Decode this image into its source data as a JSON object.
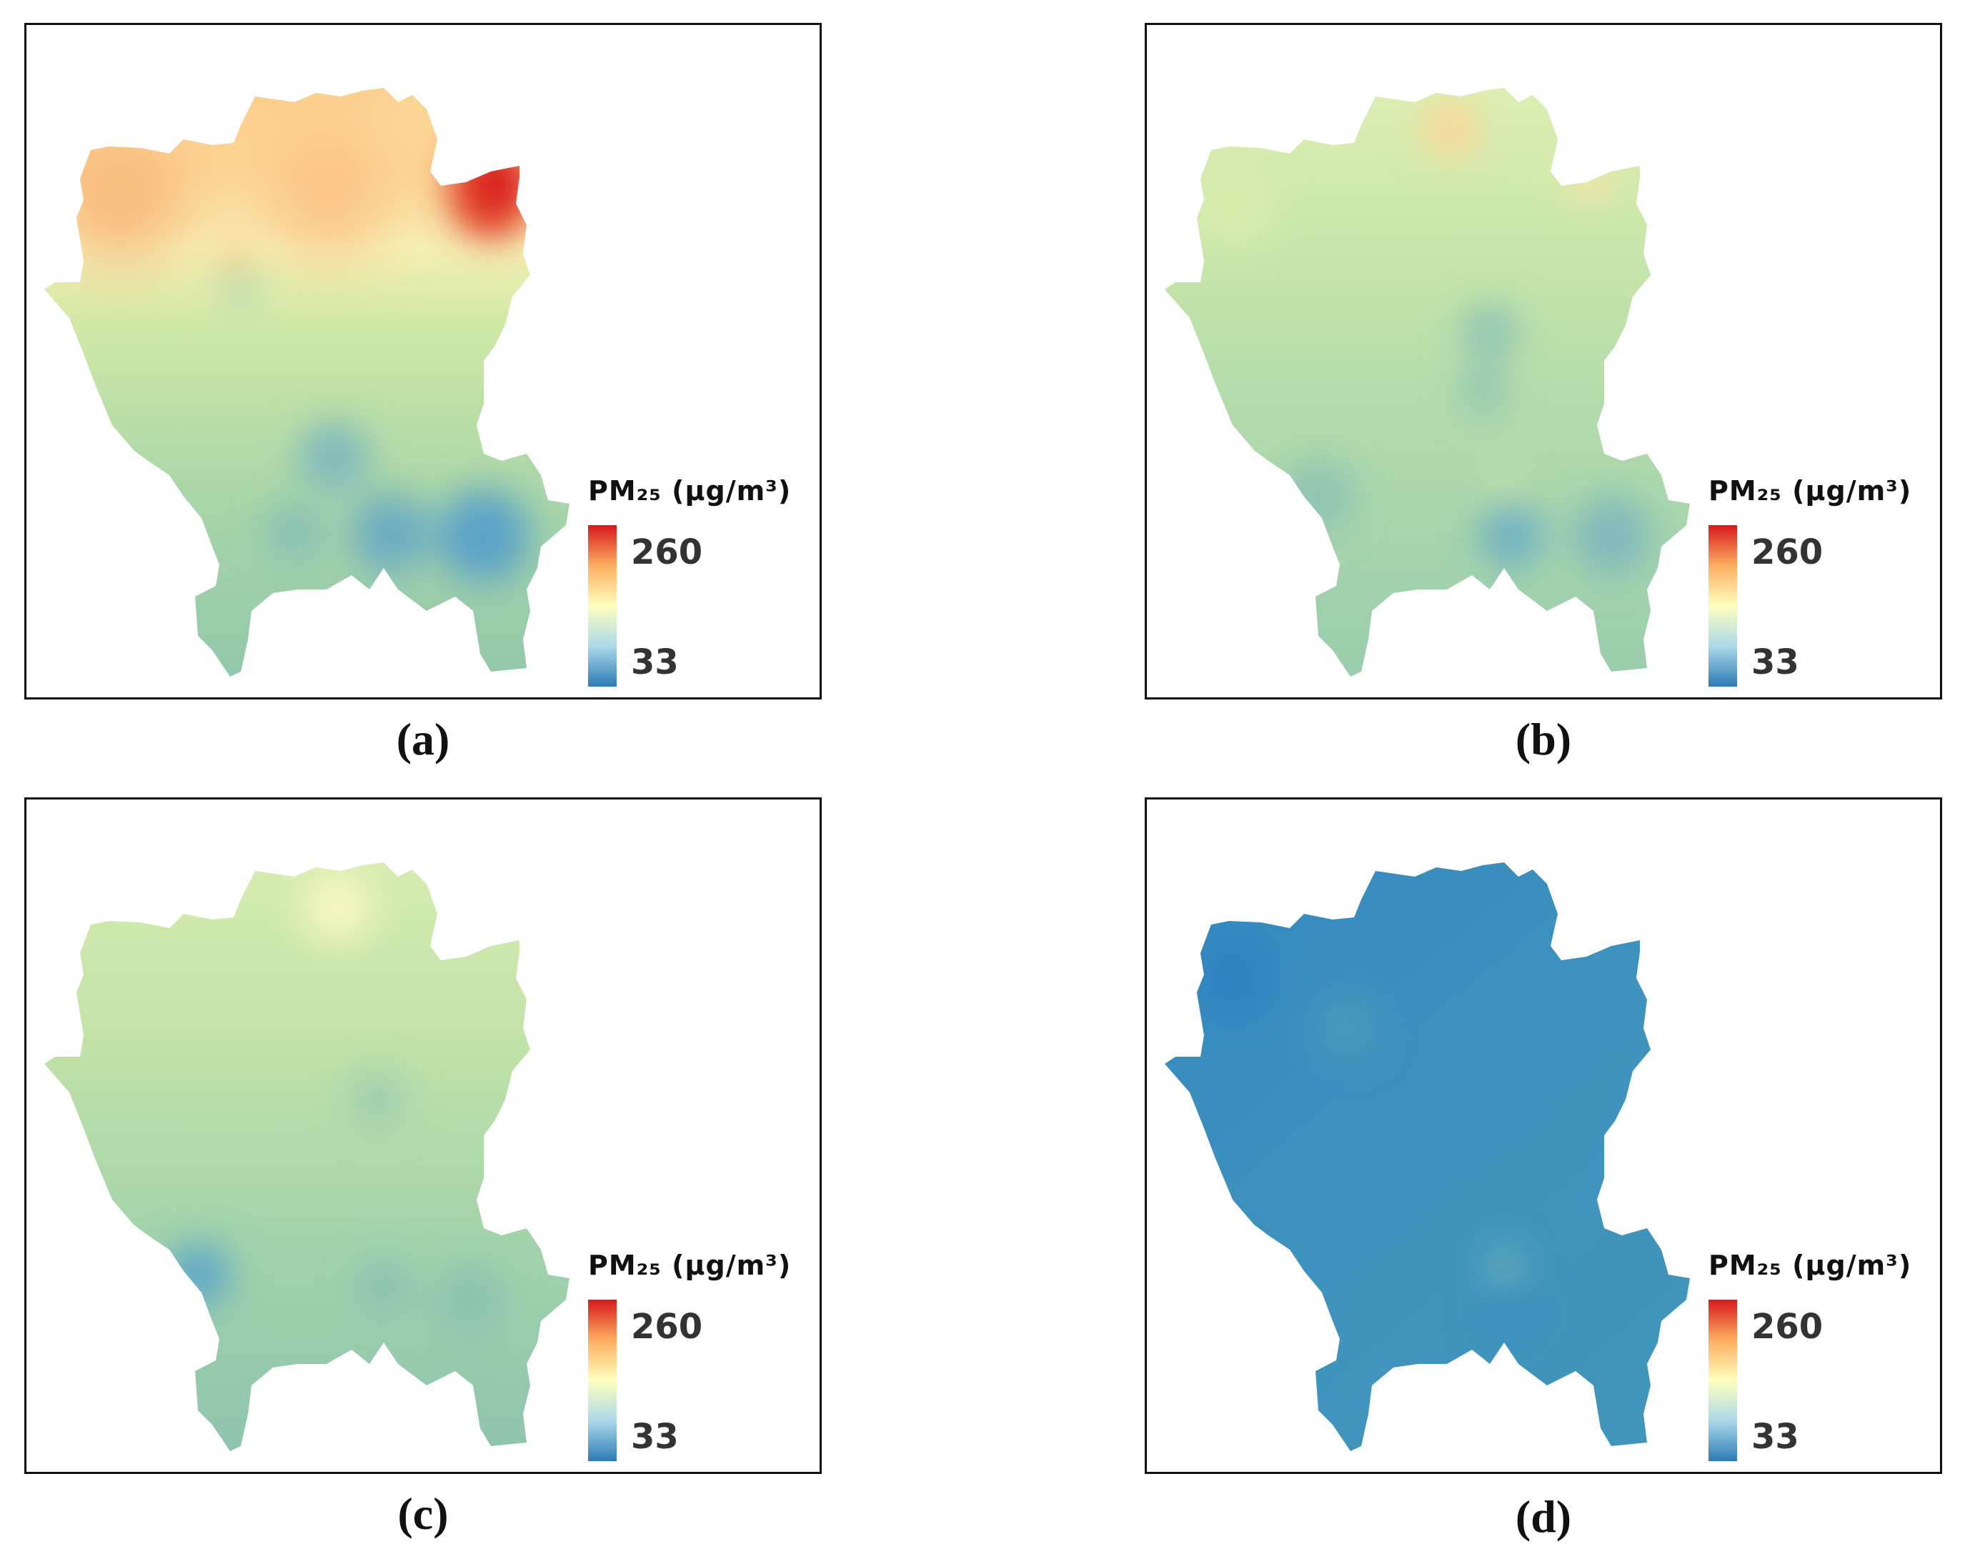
{
  "legend": {
    "title": "PM₂₅ (μg/m³)",
    "max_label": "260",
    "min_label": "33",
    "colormap": [
      "#2c7bb6",
      "#abd9e9",
      "#ffffbf",
      "#fdae61",
      "#d7191c"
    ]
  },
  "panels": [
    {
      "label": "(a)",
      "base_color": "#c6e3a6",
      "gradient": [
        "#fbc98a",
        "#fbe6a2",
        "#c6e3a6",
        "#9fd0a8",
        "#8ac4ac"
      ],
      "hotspots": [
        {
          "color": "#d7191c",
          "description": "northeast lobe"
        },
        {
          "color": "#f7b878",
          "description": "northwest"
        },
        {
          "color": "#5ba3c8",
          "description": "southeast"
        }
      ]
    },
    {
      "label": "(b)",
      "base_color": "#bfe1a8",
      "gradient": [
        "#e9f3b8",
        "#cfe9aa",
        "#b3dbab",
        "#9dcfac",
        "#92c8ad"
      ],
      "hotspots": [
        {
          "color": "#fbd795",
          "description": "north"
        },
        {
          "color": "#6fb1c5",
          "description": "south-central"
        }
      ]
    },
    {
      "label": "(c)",
      "base_color": "#b4dbac",
      "gradient": [
        "#e6f2b6",
        "#c9e6a8",
        "#b1daab",
        "#97cbad",
        "#8cc3ad"
      ],
      "hotspots": [
        {
          "color": "#f6f7c0",
          "description": "north"
        },
        {
          "color": "#5fa8c8",
          "description": "southwest"
        }
      ]
    },
    {
      "label": "(d)",
      "base_color": "#3f93bd",
      "gradient": [
        "#3a8ec0",
        "#3f93bd",
        "#4096bc",
        "#4297bb",
        "#3f94bc"
      ],
      "hotspots": [
        {
          "color": "#2d83c0",
          "description": "northwest"
        },
        {
          "color": "#7fbbb8",
          "description": "south"
        }
      ]
    }
  ]
}
